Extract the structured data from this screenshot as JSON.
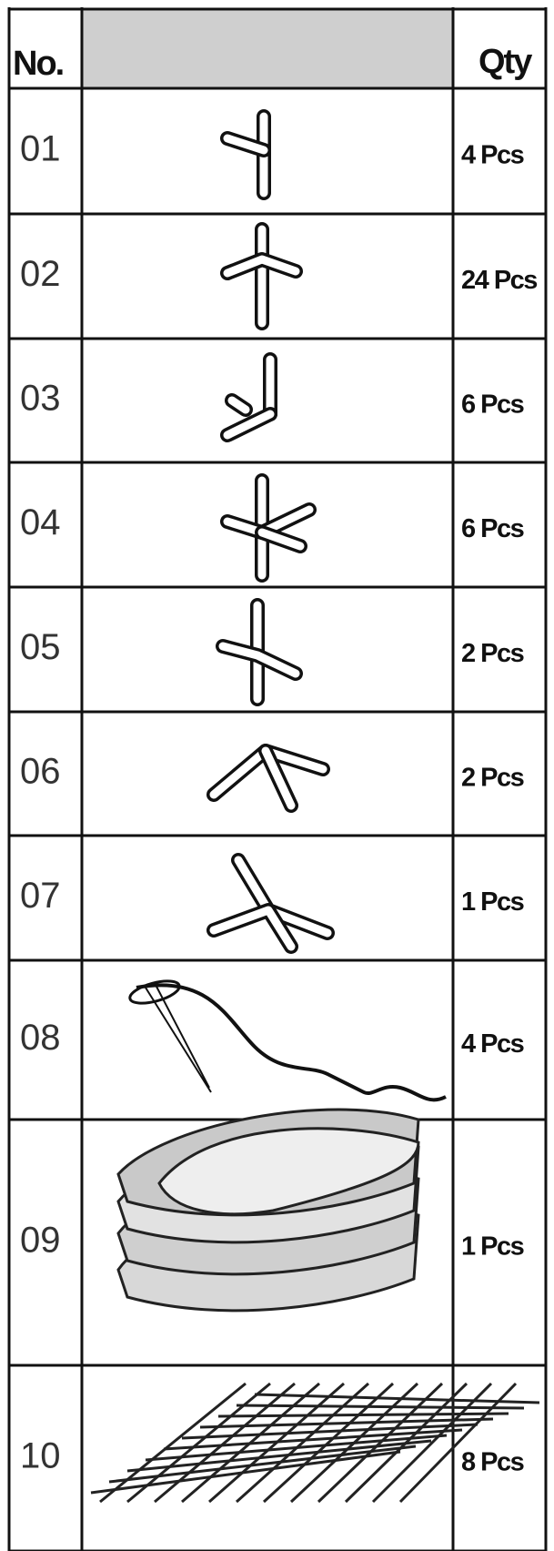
{
  "table": {
    "header": {
      "no": "No.",
      "qty": "Qty"
    },
    "rows": [
      {
        "no": "01",
        "qty": "4 Pcs"
      },
      {
        "no": "02",
        "qty": "24 Pcs"
      },
      {
        "no": "03",
        "qty": "6 Pcs"
      },
      {
        "no": "04",
        "qty": "6 Pcs"
      },
      {
        "no": "05",
        "qty": "2 Pcs"
      },
      {
        "no": "06",
        "qty": "2 Pcs"
      },
      {
        "no": "07",
        "qty": "1 Pcs"
      },
      {
        "no": "08",
        "qty": "4 Pcs"
      },
      {
        "no": "09",
        "qty": "1 Pcs"
      },
      {
        "no": "10",
        "qty": "8 Pcs"
      }
    ]
  }
}
